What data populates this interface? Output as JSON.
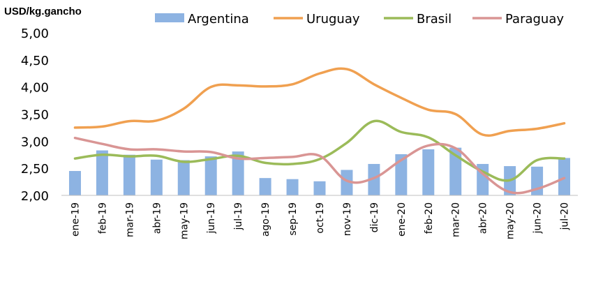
{
  "chart_data": {
    "type": "bar+line",
    "ylabel": "USD/kg.gancho",
    "ylim": [
      2.0,
      5.0
    ],
    "yticks": [
      "2,00",
      "2,50",
      "3,00",
      "3,50",
      "4,00",
      "4,50",
      "5,00"
    ],
    "ytick_values": [
      2.0,
      2.5,
      3.0,
      3.5,
      4.0,
      4.5,
      5.0
    ],
    "categories": [
      "ene-19",
      "feb-19",
      "mar-19",
      "abr-19",
      "may-19",
      "jun-19",
      "jul-19",
      "ago-19",
      "sep-19",
      "oct-19",
      "nov-19",
      "dic-19",
      "ene-20",
      "feb-20",
      "mar-20",
      "abr-20",
      "may-20",
      "jun-20",
      "jul-20"
    ],
    "legend_position": "top",
    "grid": false,
    "series": [
      {
        "name": "Argentina",
        "kind": "bar",
        "color": "#8db3e2",
        "values": [
          2.45,
          2.83,
          2.75,
          2.66,
          2.65,
          2.72,
          2.81,
          2.32,
          2.3,
          2.26,
          2.47,
          2.58,
          2.76,
          2.85,
          2.88,
          2.58,
          2.54,
          2.53,
          2.69
        ]
      },
      {
        "name": "Uruguay",
        "kind": "line",
        "color": "#f0a050",
        "values": [
          3.25,
          3.27,
          3.37,
          3.38,
          3.6,
          4.0,
          4.03,
          4.01,
          4.05,
          4.25,
          4.33,
          4.05,
          3.8,
          3.58,
          3.5,
          3.12,
          3.19,
          3.23,
          3.33
        ]
      },
      {
        "name": "Brasil",
        "kind": "line",
        "color": "#9bbb59",
        "values": [
          2.68,
          2.75,
          2.72,
          2.73,
          2.62,
          2.67,
          2.73,
          2.6,
          2.58,
          2.67,
          2.97,
          3.37,
          3.17,
          3.07,
          2.74,
          2.44,
          2.28,
          2.65,
          2.68
        ]
      },
      {
        "name": "Paraguay",
        "kind": "line",
        "color": "#d99594",
        "values": [
          3.06,
          2.95,
          2.85,
          2.85,
          2.81,
          2.8,
          2.68,
          2.69,
          2.71,
          2.73,
          2.27,
          2.32,
          2.65,
          2.92,
          2.87,
          2.4,
          2.06,
          2.12,
          2.32
        ]
      }
    ]
  }
}
